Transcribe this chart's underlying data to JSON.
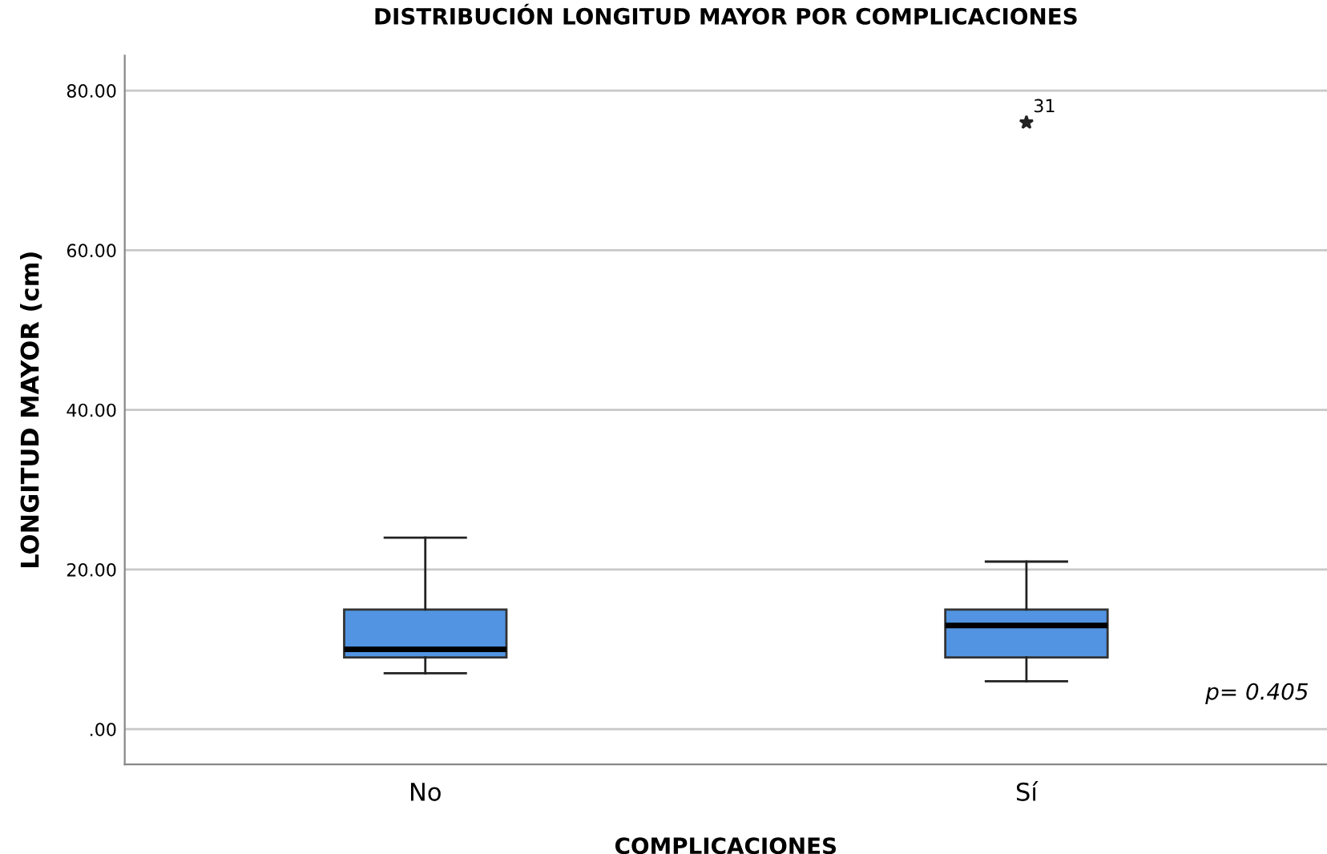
{
  "chart_data": {
    "type": "box",
    "title": "DISTRIBUCIÓN LONGITUD MAYOR POR COMPLICACIONES",
    "xlabel": "COMPLICACIONES",
    "ylabel": "LONGITUD MAYOR (cm)",
    "categories": [
      "No",
      "Sí"
    ],
    "boxes": [
      {
        "low": 7,
        "q1": 9,
        "median": 10,
        "q3": 15,
        "high": 24
      },
      {
        "low": 6,
        "q1": 9,
        "median": 13,
        "q3": 15,
        "high": 21,
        "outliers": [
          76
        ]
      }
    ],
    "color": "#5294e2",
    "marker": "star",
    "ylim": [
      -4.4,
      84.4
    ],
    "yticks": [
      {
        "value": 0,
        "label": ".00"
      },
      {
        "value": 20,
        "label": "20.00"
      },
      {
        "value": 40,
        "label": "40.00"
      },
      {
        "value": 60,
        "label": "60.00"
      },
      {
        "value": 80,
        "label": "80.00"
      }
    ],
    "grid": "y",
    "annotations": [
      "31",
      "p= 0.405"
    ]
  }
}
